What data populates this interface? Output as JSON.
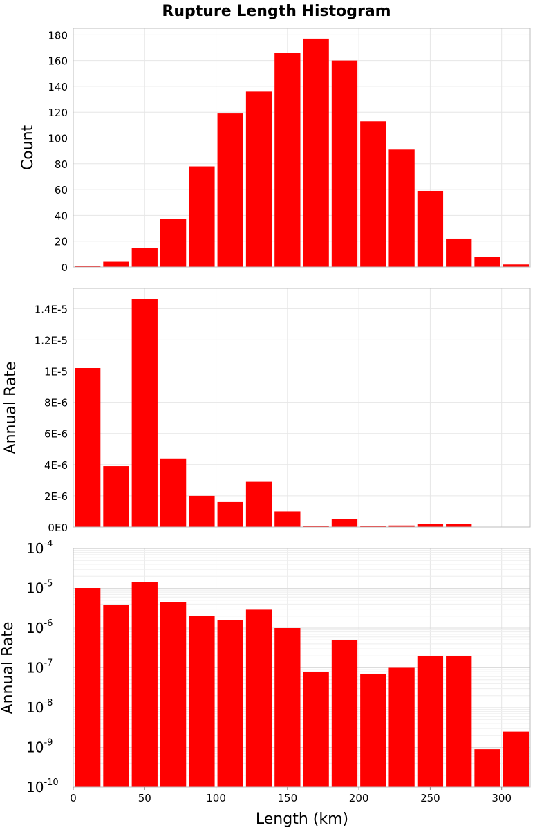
{
  "title": "Rupture Length Histogram",
  "xlabel": "Length (km)",
  "colors": {
    "bar": "#ff0000",
    "grid": "#e6e6e6",
    "frame": "#bdbdbd"
  },
  "chart_data": [
    {
      "type": "bar",
      "title": "Rupture Length Histogram",
      "ylabel": "Count",
      "xlabel": "Length (km)",
      "bin_width": 20,
      "xlim": [
        0,
        320
      ],
      "ylim": [
        0,
        185
      ],
      "grid": true,
      "x": [
        10,
        30,
        50,
        70,
        90,
        110,
        130,
        150,
        170,
        190,
        210,
        230,
        250,
        270,
        290,
        310
      ],
      "values": [
        1,
        4,
        15,
        37,
        78,
        119,
        136,
        166,
        177,
        160,
        113,
        91,
        59,
        22,
        8,
        2
      ],
      "yticks": [
        0,
        20,
        40,
        60,
        80,
        100,
        120,
        140,
        160,
        180
      ],
      "ytick_labels": [
        "0",
        "20",
        "40",
        "60",
        "80",
        "100",
        "120",
        "140",
        "160",
        "180"
      ]
    },
    {
      "type": "bar",
      "ylabel": "Annual Rate",
      "xlabel": "Length (km)",
      "bin_width": 20,
      "xlim": [
        0,
        320
      ],
      "ylim": [
        0,
        1.53e-05
      ],
      "grid": true,
      "x": [
        10,
        30,
        50,
        70,
        90,
        110,
        130,
        150,
        170,
        190,
        210,
        230,
        250,
        270,
        290,
        310
      ],
      "values": [
        1.02e-05,
        3.9e-06,
        1.46e-05,
        4.4e-06,
        2e-06,
        1.6e-06,
        2.9e-06,
        1e-06,
        8e-08,
        5e-07,
        7e-08,
        1e-07,
        2e-07,
        2e-07,
        0,
        0
      ],
      "yticks": [
        0,
        2e-06,
        4e-06,
        6e-06,
        8e-06,
        1e-05,
        1.2e-05,
        1.4e-05
      ],
      "ytick_labels": [
        "0E0",
        "2E-6",
        "4E-6",
        "6E-6",
        "8E-6",
        "1E-5",
        "1.2E-5",
        "1.4E-5"
      ]
    },
    {
      "type": "bar",
      "ylabel": "Annual Rate",
      "xlabel": "Length (km)",
      "log_y": true,
      "bin_width": 20,
      "xlim": [
        0,
        320
      ],
      "ylim": [
        1e-10,
        0.0001
      ],
      "grid": true,
      "x": [
        10,
        30,
        50,
        70,
        90,
        110,
        130,
        150,
        170,
        190,
        210,
        230,
        250,
        270,
        290,
        310
      ],
      "values": [
        1.02e-05,
        3.9e-06,
        1.46e-05,
        4.4e-06,
        2e-06,
        1.6e-06,
        2.9e-06,
        1e-06,
        8e-08,
        5e-07,
        7e-08,
        1e-07,
        2e-07,
        2e-07,
        9e-10,
        2.5e-09
      ],
      "ytick_exponents": [
        "-4",
        "-5",
        "-6",
        "-7",
        "-8",
        "-9",
        "-10"
      ],
      "ytick_base": "10",
      "xticks": [
        0,
        50,
        100,
        150,
        200,
        250,
        300
      ],
      "xtick_labels": [
        "0",
        "50",
        "100",
        "150",
        "200",
        "250",
        "300"
      ]
    }
  ]
}
